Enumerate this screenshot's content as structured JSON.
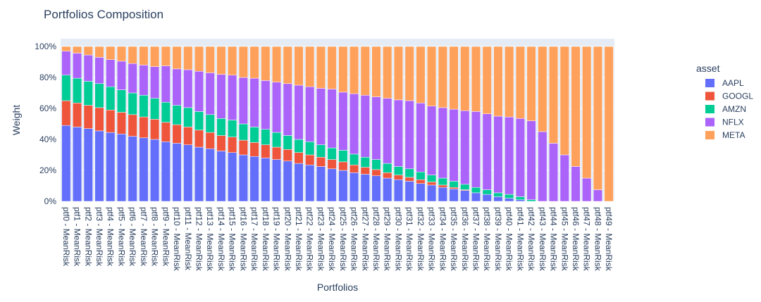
{
  "chart_data": {
    "type": "bar",
    "stacked": true,
    "title": "Portfolios Composition",
    "xlabel": "Portfolios",
    "ylabel": "Weight",
    "ylim": [
      0,
      1.05
    ],
    "yticks": [
      "0%",
      "20%",
      "40%",
      "60%",
      "80%",
      "100%"
    ],
    "grid": true,
    "legend_title": "asset",
    "legend_position": "right",
    "categories": [
      "ptf0 - MeanRisk",
      "ptf1 - MeanRisk",
      "ptf2 - MeanRisk",
      "ptf3 - MeanRisk",
      "ptf4 - MeanRisk",
      "ptf5 - MeanRisk",
      "ptf6 - MeanRisk",
      "ptf7 - MeanRisk",
      "ptf8 - MeanRisk",
      "ptf9 - MeanRisk",
      "ptf10 - MeanRisk",
      "ptf11 - MeanRisk",
      "ptf12 - MeanRisk",
      "ptf13 - MeanRisk",
      "ptf14 - MeanRisk",
      "ptf15 - MeanRisk",
      "ptf16 - MeanRisk",
      "ptf17 - MeanRisk",
      "ptf18 - MeanRisk",
      "ptf19 - MeanRisk",
      "ptf20 - MeanRisk",
      "ptf21 - MeanRisk",
      "ptf22 - MeanRisk",
      "ptf23 - MeanRisk",
      "ptf24 - MeanRisk",
      "ptf25 - MeanRisk",
      "ptf26 - MeanRisk",
      "ptf27 - MeanRisk",
      "ptf28 - MeanRisk",
      "ptf29 - MeanRisk",
      "ptf30 - MeanRisk",
      "ptf31 - MeanRisk",
      "ptf32 - MeanRisk",
      "ptf33 - MeanRisk",
      "ptf34 - MeanRisk",
      "ptf35 - MeanRisk",
      "ptf36 - MeanRisk",
      "ptf37 - MeanRisk",
      "ptf38 - MeanRisk",
      "ptf39 - MeanRisk",
      "ptf40 - MeanRisk",
      "ptf41 - MeanRisk",
      "ptf42 - MeanRisk",
      "ptf43 - MeanRisk",
      "ptf44 - MeanRisk",
      "ptf45 - MeanRisk",
      "ptf46 - MeanRisk",
      "ptf47 - MeanRisk",
      "ptf48 - MeanRisk",
      "ptf49 - MeanRisk"
    ],
    "series": [
      {
        "name": "AAPL",
        "color": "#636efa",
        "values": [
          0.49,
          0.48,
          0.47,
          0.455,
          0.445,
          0.435,
          0.42,
          0.41,
          0.4,
          0.385,
          0.375,
          0.365,
          0.35,
          0.34,
          0.325,
          0.315,
          0.3,
          0.29,
          0.28,
          0.27,
          0.26,
          0.245,
          0.235,
          0.225,
          0.21,
          0.2,
          0.185,
          0.175,
          0.165,
          0.15,
          0.14,
          0.13,
          0.115,
          0.105,
          0.09,
          0.08,
          0.07,
          0.055,
          0.045,
          0.03,
          0.02,
          0.01,
          0,
          0,
          0,
          0,
          0,
          0,
          0,
          0
        ]
      },
      {
        "name": "GOOGL",
        "color": "#ef553b",
        "values": [
          0.16,
          0.155,
          0.15,
          0.15,
          0.145,
          0.14,
          0.14,
          0.135,
          0.13,
          0.125,
          0.12,
          0.115,
          0.11,
          0.105,
          0.1,
          0.1,
          0.095,
          0.09,
          0.085,
          0.08,
          0.075,
          0.07,
          0.065,
          0.06,
          0.06,
          0.055,
          0.05,
          0.045,
          0.04,
          0.035,
          0.03,
          0.025,
          0.025,
          0.02,
          0.015,
          0.01,
          0.005,
          0,
          0,
          0,
          0,
          0,
          0,
          0,
          0,
          0,
          0,
          0,
          0,
          0
        ]
      },
      {
        "name": "AMZN",
        "color": "#00cc96",
        "values": [
          0.165,
          0.16,
          0.155,
          0.155,
          0.15,
          0.145,
          0.14,
          0.14,
          0.135,
          0.13,
          0.125,
          0.125,
          0.12,
          0.115,
          0.11,
          0.11,
          0.105,
          0.1,
          0.1,
          0.095,
          0.09,
          0.085,
          0.085,
          0.08,
          0.075,
          0.075,
          0.07,
          0.065,
          0.065,
          0.06,
          0.055,
          0.055,
          0.05,
          0.045,
          0.045,
          0.04,
          0.035,
          0.035,
          0.03,
          0.025,
          0.025,
          0.02,
          0.01,
          0,
          0,
          0,
          0,
          0,
          0,
          0
        ]
      },
      {
        "name": "NFLX",
        "color": "#ab63fa",
        "values": [
          0.155,
          0.162,
          0.17,
          0.17,
          0.175,
          0.185,
          0.19,
          0.195,
          0.205,
          0.235,
          0.235,
          0.245,
          0.26,
          0.27,
          0.285,
          0.29,
          0.3,
          0.315,
          0.315,
          0.325,
          0.335,
          0.35,
          0.355,
          0.365,
          0.38,
          0.375,
          0.39,
          0.4,
          0.405,
          0.42,
          0.43,
          0.44,
          0.445,
          0.445,
          0.455,
          0.465,
          0.475,
          0.49,
          0.49,
          0.495,
          0.5,
          0.505,
          0.51,
          0.45,
          0.375,
          0.3,
          0.225,
          0.15,
          0.075,
          0
        ]
      },
      {
        "name": "META",
        "color": "#ffa15a",
        "values": [
          0.03,
          0.043,
          0.055,
          0.07,
          0.085,
          0.095,
          0.11,
          0.12,
          0.13,
          0.125,
          0.145,
          0.15,
          0.16,
          0.17,
          0.18,
          0.185,
          0.2,
          0.205,
          0.22,
          0.23,
          0.24,
          0.25,
          0.26,
          0.27,
          0.275,
          0.295,
          0.305,
          0.315,
          0.325,
          0.335,
          0.345,
          0.35,
          0.365,
          0.385,
          0.395,
          0.405,
          0.415,
          0.42,
          0.435,
          0.45,
          0.455,
          0.465,
          0.48,
          0.55,
          0.625,
          0.7,
          0.775,
          0.85,
          0.925,
          1.0
        ]
      }
    ]
  }
}
